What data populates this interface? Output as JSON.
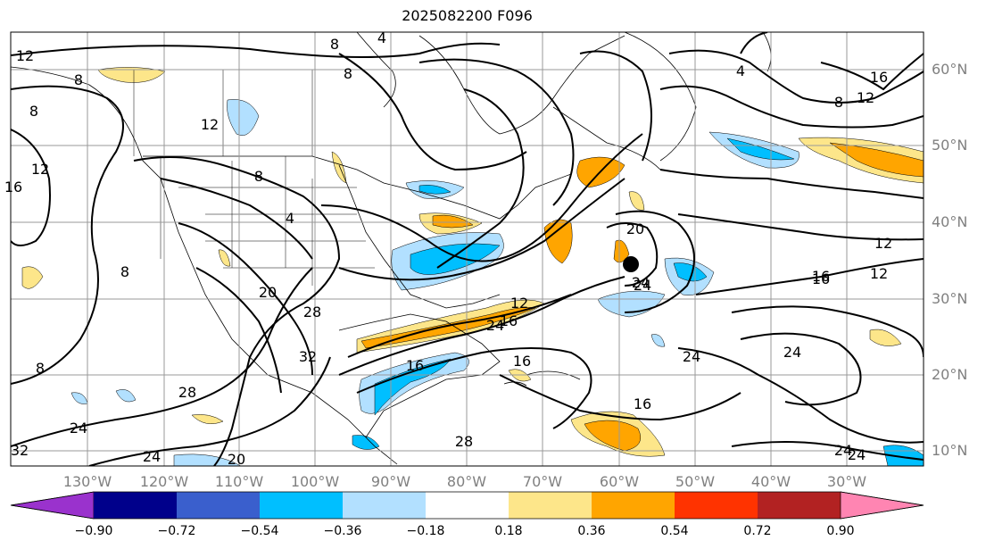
{
  "title": "2025082200 F096",
  "lon_labels": [
    "130°W",
    "120°W",
    "110°W",
    "100°W",
    "90°W",
    "80°W",
    "70°W",
    "60°W",
    "50°W",
    "40°W",
    "30°W"
  ],
  "lat_labels": [
    "60°N",
    "50°N",
    "40°N",
    "30°N",
    "20°N",
    "10°N"
  ],
  "contour_labels": [
    "12",
    "8",
    "4",
    "8",
    "8",
    "4",
    "16",
    "12",
    "8",
    "12",
    "16",
    "12",
    "8",
    "4",
    "8",
    "20",
    "24",
    "28",
    "32",
    "28",
    "24",
    "20",
    "16",
    "24",
    "16",
    "16",
    "12",
    "16",
    "20",
    "24",
    "28",
    "32",
    "24",
    "24",
    "24",
    "16",
    "12",
    "16",
    "12",
    "24",
    "8",
    "24",
    "8"
  ],
  "colorbar": {
    "tick_labels": [
      "−0.90",
      "−0.72",
      "−0.54",
      "−0.36",
      "−0.18",
      "0.18",
      "0.36",
      "0.54",
      "0.72",
      "0.90"
    ],
    "colors": [
      "#9a32cd",
      "#00008b",
      "#3a5fcd",
      "#00bfff",
      "#b2e0ff",
      "#ffffff",
      "#fde68a",
      "#ffa500",
      "#ff3300",
      "#b22222",
      "#ff85b2"
    ]
  },
  "marker": {
    "label": "storm-center-marker"
  }
}
